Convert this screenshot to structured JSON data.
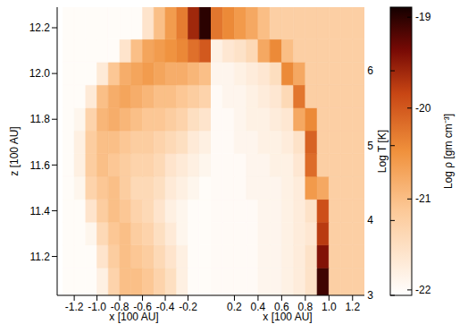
{
  "chart_data": [
    {
      "type": "heatmap",
      "xlabel": "x [100 AU]",
      "ylabel": "z [100 AU]",
      "xlim": [
        -1.35,
        0
      ],
      "xticks": [
        -1.2,
        {
          "value": -1,
          "label": "-1.0"
        },
        -0.8,
        -0.6,
        -0.4,
        -0.2
      ],
      "ylim": [
        11.03,
        12.29
      ],
      "yticks": [
        11.2,
        11.4,
        11.6,
        11.8,
        {
          "value": 12,
          "label": "12.0"
        },
        12.2
      ],
      "x_bins": [
        -1.3,
        -1.2,
        -1.1,
        -1,
        -0.9,
        -0.8,
        -0.7,
        -0.6,
        -0.5,
        -0.4,
        -0.3,
        -0.2,
        -0.1,
        0
      ],
      "z_bins": [
        11.03,
        11.15,
        11.25,
        11.35,
        11.45,
        11.55,
        11.65,
        11.75,
        11.85,
        11.95,
        12.05,
        12.15,
        12.29
      ],
      "cells": [
        [
          -22,
          -22,
          -22,
          -21.8,
          -21.3,
          -21,
          -21,
          -21.1,
          -21.3,
          -21.5,
          -21.8,
          -22,
          -22
        ],
        [
          -22,
          -22,
          -22,
          -21.6,
          -21.2,
          -21,
          -21.1,
          -21.2,
          -21.4,
          -21.6,
          -21.8,
          -22,
          -22
        ],
        [
          -22,
          -22,
          -21.9,
          -21.4,
          -21.1,
          -21,
          -21.2,
          -21.3,
          -21.5,
          -21.7,
          -21.9,
          -22,
          -22
        ],
        [
          -22,
          -22,
          -21.6,
          -21.2,
          -21,
          -21.1,
          -21.3,
          -21.4,
          -21.6,
          -21.8,
          -21.9,
          -22,
          -22
        ],
        [
          -22,
          -21.9,
          -21.3,
          -21.1,
          -21,
          -21.2,
          -21.4,
          -21.4,
          -21.5,
          -21.7,
          -21.8,
          -21.9,
          -22
        ],
        [
          -22,
          -21.8,
          -21.2,
          -21,
          -21.1,
          -21.2,
          -21.3,
          -21.3,
          -21.4,
          -21.6,
          -21.7,
          -21.8,
          -21.9
        ],
        [
          -22,
          -21.8,
          -21.2,
          -21,
          -21,
          -21.1,
          -21.2,
          -21.2,
          -21.3,
          -21.4,
          -21.5,
          -21.7,
          -21.8
        ],
        [
          -22,
          -21.9,
          -21.3,
          -20.9,
          -20.8,
          -20.9,
          -21,
          -21.1,
          -21.1,
          -21.2,
          -21.3,
          -21.5,
          -21.6
        ],
        [
          -22,
          -22,
          -21.7,
          -21,
          -20.8,
          -20.7,
          -20.8,
          -20.9,
          -21,
          -21,
          -21.1,
          -21.2,
          -21.3
        ],
        [
          -22,
          -22,
          -22,
          -21.7,
          -21.1,
          -20.8,
          -20.7,
          -20.6,
          -20.7,
          -20.8,
          -20.8,
          -20.9,
          -21
        ],
        [
          -22,
          -22,
          -22,
          -22,
          -22,
          -21.6,
          -21,
          -20.7,
          -20.6,
          -20.5,
          -20.4,
          -20.2,
          -20
        ],
        [
          -22,
          -22,
          -22,
          -22,
          -22,
          -22,
          -22,
          -21.6,
          -21,
          -20.6,
          -20.3,
          -19.6,
          -19
        ]
      ],
      "colorbar": {
        "label": "Log ρ [gm cm⁻³]",
        "range": [
          -22.06,
          -18.89
        ],
        "ticks": [
          -22,
          -21,
          -20,
          -19
        ]
      }
    },
    {
      "type": "heatmap",
      "xlabel": "x [100 AU]",
      "xlim": [
        0,
        1.3
      ],
      "xticks": [
        0.2,
        0.4,
        0.6,
        0.8,
        {
          "value": 1,
          "label": "1.0"
        },
        1.2
      ],
      "ylim": [
        11.03,
        12.29
      ],
      "tick_labels": "x",
      "x_bins": [
        0,
        0.1,
        0.2,
        0.3,
        0.4,
        0.5,
        0.6,
        0.7,
        0.8,
        0.9,
        1,
        1.1,
        1.2,
        1.3
      ],
      "z_bins": [
        11.03,
        11.15,
        11.25,
        11.35,
        11.45,
        11.55,
        11.65,
        11.75,
        11.85,
        11.95,
        12.05,
        12.15,
        12.29
      ],
      "cells": [
        [
          3.1,
          3.1,
          3.1,
          3.1,
          3.2,
          3.2,
          3.3,
          3.4,
          3.6,
          6.6,
          4,
          4,
          4
        ],
        [
          3.1,
          3.1,
          3.1,
          3.1,
          3.2,
          3.2,
          3.3,
          3.4,
          3.6,
          6.2,
          4,
          4,
          4
        ],
        [
          3.1,
          3.1,
          3.1,
          3.1,
          3.2,
          3.2,
          3.3,
          3.4,
          3.5,
          5.8,
          4,
          4,
          4
        ],
        [
          3.1,
          3.1,
          3.1,
          3.1,
          3.2,
          3.2,
          3.3,
          3.4,
          3.6,
          5.6,
          4,
          4,
          4
        ],
        [
          3.1,
          3.1,
          3.1,
          3.2,
          3.2,
          3.2,
          3.3,
          3.4,
          4.8,
          4.6,
          4,
          4,
          4
        ],
        [
          3.1,
          3.1,
          3.1,
          3.2,
          3.2,
          3.3,
          3.3,
          3.5,
          5.3,
          4,
          4,
          4,
          4
        ],
        [
          3.1,
          3.1,
          3.2,
          3.2,
          3.3,
          3.3,
          3.4,
          3.6,
          5.4,
          4,
          4,
          4,
          4
        ],
        [
          3.1,
          3.1,
          3.2,
          3.3,
          3.3,
          3.4,
          3.5,
          4.6,
          5,
          4,
          4,
          4,
          4
        ],
        [
          3.1,
          3.2,
          3.2,
          3.3,
          3.4,
          3.5,
          3.8,
          5.2,
          4,
          4,
          4,
          4,
          4
        ],
        [
          3.2,
          3.2,
          3.3,
          3.4,
          3.5,
          3.7,
          5,
          4.6,
          4,
          4,
          4,
          4,
          4
        ],
        [
          3.3,
          3.5,
          3.6,
          3.8,
          4.6,
          5,
          4.3,
          4,
          4,
          4,
          4,
          4,
          4
        ],
        [
          5.2,
          5,
          4.8,
          4.6,
          4.3,
          4,
          4,
          4,
          4,
          4,
          4,
          4,
          4
        ]
      ],
      "colorbar": {
        "label": "Log T [K]",
        "range": [
          3,
          6.85
        ],
        "ticks": [
          3,
          4,
          5,
          6
        ]
      }
    }
  ]
}
